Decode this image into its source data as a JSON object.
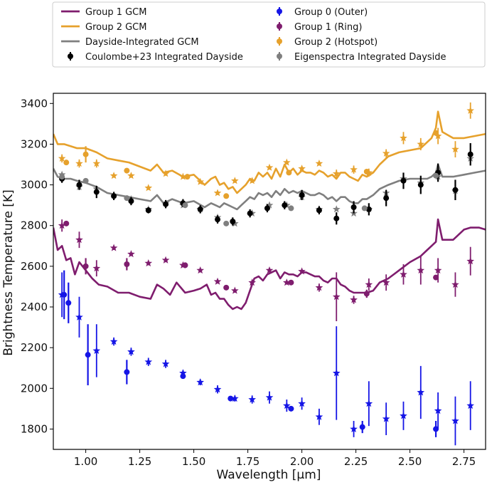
{
  "chart_data": {
    "type": "line",
    "xlabel": "Wavelength [μm]",
    "ylabel": "Brightness Temperature [K]",
    "xlim": [
      0.85,
      2.85
    ],
    "ylim": [
      1700,
      3450
    ],
    "x_ticks": [
      1.0,
      1.25,
      1.5,
      1.75,
      2.0,
      2.25,
      2.5,
      2.75
    ],
    "x_tick_labels": [
      "1.00",
      "1.25",
      "1.50",
      "1.75",
      "2.00",
      "2.25",
      "2.50",
      "2.75"
    ],
    "y_ticks": [
      1800,
      2000,
      2200,
      2400,
      2600,
      2800,
      3000,
      3200,
      3400
    ],
    "y_tick_labels": [
      "1800",
      "2000",
      "2200",
      "2400",
      "2600",
      "2800",
      "3000",
      "3200",
      "3400"
    ],
    "legend": {
      "placement": "top",
      "entries": [
        {
          "label": "Group 1 GCM",
          "kind": "line",
          "color": "#7f1d6e"
        },
        {
          "label": "Group 0 (Outer)",
          "kind": "point",
          "color": "#1515e6"
        },
        {
          "label": "Group 2 GCM",
          "kind": "line",
          "color": "#e6a12c"
        },
        {
          "label": "Group 1 (Ring)",
          "kind": "point",
          "color": "#7f1d6e"
        },
        {
          "label": "Dayside-Integrated GCM",
          "kind": "line",
          "color": "#7f7f7f"
        },
        {
          "label": "Group 2 (Hotspot)",
          "kind": "point",
          "color": "#e6a12c"
        },
        {
          "label": "Coulombe+23 Integrated Dayside",
          "kind": "point",
          "color": "#000000"
        },
        {
          "label": "Eigenspectra Integrated Dayside",
          "kind": "point",
          "color": "#7f7f7f"
        }
      ]
    },
    "lines": [
      {
        "name": "Group 1 GCM",
        "color": "#7f1d6e",
        "x": [
          0.85,
          0.87,
          0.89,
          0.91,
          0.93,
          0.95,
          0.97,
          1.0,
          1.03,
          1.06,
          1.1,
          1.15,
          1.2,
          1.25,
          1.3,
          1.33,
          1.36,
          1.39,
          1.42,
          1.46,
          1.5,
          1.53,
          1.56,
          1.58,
          1.6,
          1.62,
          1.64,
          1.66,
          1.68,
          1.7,
          1.72,
          1.74,
          1.76,
          1.78,
          1.8,
          1.82,
          1.84,
          1.86,
          1.88,
          1.9,
          1.92,
          1.94,
          1.96,
          1.98,
          2.0,
          2.02,
          2.04,
          2.06,
          2.08,
          2.1,
          2.12,
          2.14,
          2.16,
          2.18,
          2.2,
          2.22,
          2.24,
          2.26,
          2.28,
          2.3,
          2.33,
          2.36,
          2.4,
          2.45,
          2.5,
          2.55,
          2.58,
          2.6,
          2.62,
          2.63,
          2.65,
          2.7,
          2.75,
          2.78,
          2.82,
          2.85
        ],
        "y": [
          2790,
          2680,
          2700,
          2630,
          2640,
          2560,
          2620,
          2580,
          2540,
          2510,
          2500,
          2470,
          2470,
          2450,
          2440,
          2510,
          2490,
          2460,
          2520,
          2470,
          2480,
          2490,
          2510,
          2460,
          2470,
          2440,
          2440,
          2410,
          2390,
          2400,
          2390,
          2420,
          2480,
          2540,
          2550,
          2530,
          2560,
          2570,
          2580,
          2540,
          2570,
          2560,
          2560,
          2550,
          2570,
          2570,
          2560,
          2550,
          2550,
          2530,
          2520,
          2540,
          2540,
          2510,
          2500,
          2480,
          2470,
          2470,
          2470,
          2470,
          2480,
          2520,
          2540,
          2580,
          2620,
          2650,
          2680,
          2700,
          2720,
          2830,
          2730,
          2730,
          2780,
          2790,
          2790,
          2780
        ]
      },
      {
        "name": "Group 2 GCM",
        "color": "#e6a12c",
        "x": [
          0.85,
          0.87,
          0.9,
          0.93,
          0.96,
          1.0,
          1.05,
          1.1,
          1.15,
          1.2,
          1.25,
          1.3,
          1.33,
          1.36,
          1.4,
          1.45,
          1.5,
          1.55,
          1.58,
          1.6,
          1.62,
          1.64,
          1.66,
          1.68,
          1.7,
          1.72,
          1.74,
          1.76,
          1.78,
          1.8,
          1.82,
          1.84,
          1.86,
          1.88,
          1.9,
          1.92,
          1.94,
          1.96,
          1.98,
          2.0,
          2.02,
          2.04,
          2.06,
          2.08,
          2.1,
          2.12,
          2.14,
          2.16,
          2.18,
          2.2,
          2.22,
          2.24,
          2.26,
          2.28,
          2.3,
          2.33,
          2.36,
          2.4,
          2.45,
          2.5,
          2.55,
          2.58,
          2.6,
          2.62,
          2.63,
          2.65,
          2.7,
          2.75,
          2.8,
          2.85
        ],
        "y": [
          3250,
          3200,
          3200,
          3190,
          3180,
          3180,
          3160,
          3130,
          3120,
          3110,
          3090,
          3070,
          3100,
          3060,
          3070,
          3040,
          3050,
          3000,
          3030,
          3040,
          3000,
          3010,
          2980,
          2990,
          2960,
          2980,
          3000,
          3030,
          3020,
          3060,
          3040,
          3060,
          3030,
          3080,
          3040,
          3100,
          3060,
          3080,
          3050,
          3070,
          3060,
          3060,
          3050,
          3070,
          3060,
          3040,
          3050,
          3030,
          3060,
          3060,
          3040,
          3030,
          3020,
          3050,
          3040,
          3060,
          3100,
          3140,
          3160,
          3170,
          3180,
          3210,
          3230,
          3280,
          3360,
          3260,
          3230,
          3230,
          3240,
          3250
        ]
      },
      {
        "name": "Dayside-Integrated GCM",
        "color": "#7f7f7f",
        "x": [
          0.85,
          0.87,
          0.9,
          0.93,
          0.96,
          1.0,
          1.05,
          1.1,
          1.15,
          1.2,
          1.25,
          1.3,
          1.33,
          1.36,
          1.4,
          1.45,
          1.5,
          1.55,
          1.58,
          1.6,
          1.62,
          1.64,
          1.66,
          1.68,
          1.7,
          1.72,
          1.74,
          1.76,
          1.78,
          1.8,
          1.82,
          1.84,
          1.86,
          1.88,
          1.9,
          1.92,
          1.94,
          1.96,
          1.98,
          2.0,
          2.02,
          2.04,
          2.06,
          2.08,
          2.1,
          2.12,
          2.14,
          2.16,
          2.18,
          2.2,
          2.22,
          2.24,
          2.26,
          2.28,
          2.3,
          2.33,
          2.36,
          2.4,
          2.45,
          2.5,
          2.55,
          2.58,
          2.6,
          2.62,
          2.63,
          2.65,
          2.7,
          2.75,
          2.8,
          2.85
        ],
        "y": [
          3080,
          3040,
          3030,
          3030,
          3020,
          3010,
          2990,
          2960,
          2950,
          2940,
          2930,
          2920,
          2950,
          2910,
          2930,
          2910,
          2920,
          2890,
          2910,
          2900,
          2890,
          2910,
          2900,
          2890,
          2880,
          2900,
          2920,
          2940,
          2930,
          2960,
          2950,
          2960,
          2940,
          2970,
          2950,
          2980,
          2960,
          2970,
          2960,
          2970,
          2960,
          2950,
          2950,
          2960,
          2950,
          2930,
          2940,
          2920,
          2940,
          2940,
          2920,
          2910,
          2910,
          2930,
          2930,
          2950,
          2980,
          3000,
          3020,
          3030,
          3030,
          3030,
          3040,
          3060,
          3100,
          3040,
          3040,
          3050,
          3060,
          3070
        ]
      }
    ],
    "points": [
      {
        "name": "Group 0 (Outer)",
        "color": "#1515e6",
        "x": [
          0.9,
          0.92,
          1.01,
          1.19,
          1.45,
          1.67,
          1.95,
          2.28,
          2.62
        ],
        "y": [
          2460,
          2420,
          2165,
          2080,
          2060,
          1950,
          1900,
          1810,
          1800
        ],
        "err": [
          120,
          100,
          150,
          60,
          0,
          0,
          0,
          30,
          40
        ]
      },
      {
        "name": "Group 1 (Ring)",
        "color": "#7f1d6e",
        "x": [
          0.91,
          1.0,
          1.19,
          1.46,
          1.65,
          1.95,
          2.3,
          2.62
        ],
        "y": [
          2810,
          2600,
          2610,
          2605,
          2495,
          2520,
          2465,
          2545
        ],
        "err": [
          0,
          40,
          30,
          0,
          0,
          0,
          20,
          0
        ]
      },
      {
        "name": "Group 2 (Hotspot)",
        "color": "#e6a12c",
        "x": [
          0.91,
          1.0,
          1.19,
          1.47,
          1.65,
          1.94,
          2.3,
          2.62
        ],
        "y": [
          3110,
          3150,
          3070,
          3040,
          2945,
          3060,
          3065,
          3255
        ],
        "err": [
          0,
          40,
          0,
          0,
          0,
          0,
          0,
          0
        ]
      },
      {
        "name": "Coulombe+23 Integrated Dayside",
        "color": "#000000",
        "x": [
          0.89,
          0.97,
          1.05,
          1.13,
          1.21,
          1.29,
          1.37,
          1.45,
          1.53,
          1.61,
          1.68,
          1.76,
          1.84,
          1.92,
          2.0,
          2.08,
          2.16,
          2.24,
          2.31,
          2.39,
          2.47,
          2.55,
          2.63,
          2.71,
          2.78
        ],
        "y": [
          3030,
          3000,
          2965,
          2945,
          2920,
          2875,
          2905,
          2910,
          2880,
          2830,
          2820,
          2860,
          2885,
          2900,
          2950,
          2875,
          2835,
          2890,
          2880,
          2935,
          3020,
          3000,
          3060,
          2975,
          3150
        ],
        "err": [
          20,
          25,
          30,
          20,
          20,
          15,
          20,
          20,
          20,
          20,
          20,
          20,
          20,
          20,
          25,
          20,
          30,
          30,
          30,
          40,
          40,
          45,
          45,
          50,
          55
        ]
      },
      {
        "name": "Eigenspectra Integrated Dayside",
        "color": "#7f7f7f",
        "x": [
          0.89,
          1.0,
          1.19,
          1.46,
          1.65,
          1.95,
          2.29,
          2.62
        ],
        "y": [
          3040,
          3020,
          2935,
          2900,
          2810,
          2885,
          2885,
          3045
        ],
        "err": [
          0,
          0,
          0,
          0,
          0,
          0,
          0,
          0
        ]
      }
    ],
    "stars": [
      {
        "name": "Group 0 (Outer)",
        "color": "#1515e6",
        "x": [
          0.89,
          0.97,
          1.05,
          1.13,
          1.21,
          1.29,
          1.37,
          1.45,
          1.53,
          1.61,
          1.69,
          1.77,
          1.85,
          1.93,
          2.0,
          2.08,
          2.16,
          2.24,
          2.31,
          2.39,
          2.47,
          2.55,
          2.63,
          2.71,
          2.78
        ],
        "y": [
          2460,
          2350,
          2185,
          2230,
          2180,
          2130,
          2120,
          2075,
          2030,
          1995,
          1950,
          1945,
          1955,
          1915,
          1925,
          1860,
          2075,
          1800,
          1925,
          1850,
          1865,
          1980,
          1890,
          1840,
          1915
        ],
        "err": [
          110,
          100,
          130,
          20,
          20,
          20,
          20,
          15,
          15,
          20,
          15,
          20,
          30,
          30,
          30,
          40,
          230,
          40,
          110,
          80,
          70,
          130,
          90,
          120,
          120
        ]
      },
      {
        "name": "Group 1 (Ring)",
        "color": "#7f1d6e",
        "x": [
          0.89,
          0.97,
          1.05,
          1.13,
          1.21,
          1.29,
          1.37,
          1.45,
          1.53,
          1.61,
          1.69,
          1.77,
          1.85,
          1.93,
          2.0,
          2.08,
          2.16,
          2.24,
          2.31,
          2.39,
          2.47,
          2.55,
          2.63,
          2.71,
          2.78
        ],
        "y": [
          2800,
          2730,
          2590,
          2690,
          2660,
          2615,
          2630,
          2605,
          2580,
          2525,
          2480,
          2520,
          2580,
          2520,
          2575,
          2495,
          2450,
          2435,
          2510,
          2520,
          2560,
          2580,
          2580,
          2510,
          2625
        ],
        "err": [
          30,
          40,
          40,
          10,
          10,
          10,
          10,
          10,
          10,
          10,
          10,
          10,
          10,
          10,
          10,
          20,
          120,
          20,
          30,
          40,
          50,
          70,
          60,
          60,
          70
        ]
      },
      {
        "name": "Group 2 (Hotspot)",
        "color": "#e6a12c",
        "x": [
          0.89,
          0.97,
          1.05,
          1.13,
          1.21,
          1.29,
          1.37,
          1.45,
          1.53,
          1.61,
          1.69,
          1.77,
          1.85,
          1.93,
          2.0,
          2.08,
          2.16,
          2.24,
          2.31,
          2.39,
          2.47,
          2.55,
          2.63,
          2.71,
          2.78
        ],
        "y": [
          3130,
          3105,
          3105,
          3045,
          3045,
          2985,
          3055,
          3040,
          3015,
          2960,
          3020,
          3020,
          3085,
          3110,
          3080,
          3105,
          3055,
          3075,
          3060,
          3155,
          3230,
          3200,
          3240,
          3175,
          3365
        ],
        "err": [
          20,
          20,
          20,
          10,
          10,
          10,
          10,
          10,
          10,
          10,
          10,
          10,
          10,
          10,
          10,
          10,
          20,
          20,
          20,
          20,
          30,
          30,
          40,
          40,
          40
        ]
      },
      {
        "name": "Eigenspectra Integrated Dayside",
        "color": "#7f7f7f",
        "x": [
          0.89,
          0.97,
          1.05,
          1.13,
          1.21,
          1.29,
          1.37,
          1.45,
          1.53,
          1.61,
          1.69,
          1.77,
          1.85,
          1.93,
          2.0,
          2.08,
          2.16,
          2.24,
          2.31,
          2.39,
          2.47,
          2.55,
          2.63,
          2.71,
          2.78
        ],
        "y": [
          3050,
          2990,
          2980,
          2950,
          2930,
          2880,
          2910,
          2900,
          2880,
          2840,
          2810,
          2860,
          2900,
          2900,
          2940,
          2880,
          2880,
          2860,
          2880,
          2960,
          3030,
          3010,
          3040,
          2970,
          3130
        ],
        "err": [
          0,
          0,
          0,
          0,
          0,
          0,
          0,
          0,
          0,
          0,
          0,
          0,
          0,
          0,
          0,
          0,
          0,
          0,
          0,
          0,
          0,
          0,
          0,
          0,
          0
        ]
      }
    ]
  }
}
